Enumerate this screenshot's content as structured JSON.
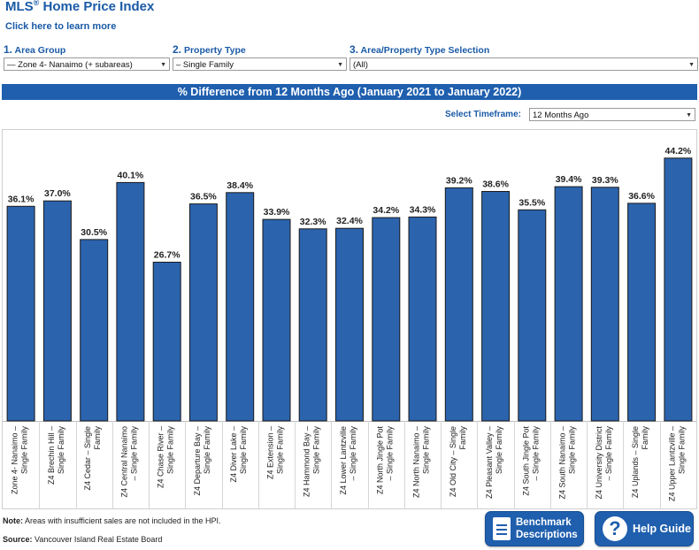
{
  "header": {
    "title": "MLS",
    "title_mark": "®",
    "title_rest": " Home Price Index",
    "learn_link": "Click here to learn more"
  },
  "filters": [
    {
      "num": "1.",
      "label": "Area Group",
      "value": "— Zone 4- Nanaimo (+ subareas)"
    },
    {
      "num": "2.",
      "label": "Property Type",
      "value": "– Single Family"
    },
    {
      "num": "3.",
      "label": "Area/Property Type Selection",
      "value": "(All)"
    }
  ],
  "timeframe": {
    "label": "Select Timeframe:",
    "value": "12 Months Ago"
  },
  "footer": {
    "note_label": "Note:",
    "note_text": " Areas with insufficient sales are not included in the HPI.",
    "source_label": "Source:",
    "source_text": " Vancouver Island Real Estate Board",
    "benchmark_line1": "Benchmark",
    "benchmark_line2": "Descriptions",
    "help": "Help Guide"
  },
  "colors": {
    "bar": "#2b63ad",
    "bar_outline": "#1b1b1b",
    "accent": "#1f5fae"
  },
  "chart_data": {
    "type": "bar",
    "title": "% Difference from 12 Months Ago (January 2021 to January 2022)",
    "xlabel": "",
    "ylabel": "",
    "ylim": [
      0,
      47
    ],
    "grid": false,
    "categories": [
      [
        "Zone 4- Nanaimo –",
        "Single Family"
      ],
      [
        "Z4 Brechin Hill –",
        "Single Family"
      ],
      [
        "Z4 Cedar – Single",
        "Family"
      ],
      [
        "Z4 Central Nanaimo",
        "– Single Family"
      ],
      [
        "Z4 Chase River –",
        "Single Family"
      ],
      [
        "Z4 Departure Bay –",
        "Single Family"
      ],
      [
        "Z4 Diver Lake –",
        "Single Family"
      ],
      [
        "Z4 Extension –",
        "Single Family"
      ],
      [
        "Z4 Hammond Bay –",
        "Single Family"
      ],
      [
        "Z4 Lower Lantzville",
        "– Single Family"
      ],
      [
        "Z4 North Jingle Pot",
        "– Single Family"
      ],
      [
        "Z4 North Nanaimo –",
        "Single Family"
      ],
      [
        "Z4 Old City – Single",
        "Family"
      ],
      [
        "Z4 Pleasant Valley –",
        "Single Family"
      ],
      [
        "Z4 South Jingle Pot",
        "– Single Family"
      ],
      [
        "Z4 South Nanaimo –",
        "Single Family"
      ],
      [
        "Z4 University District",
        "– Single Family"
      ],
      [
        "Z4 Uplands – Single",
        "Family"
      ],
      [
        "Z4 Upper Lantzville –",
        "Single Family"
      ]
    ],
    "values": [
      36.1,
      37.0,
      30.5,
      40.1,
      26.7,
      36.5,
      38.4,
      33.9,
      32.3,
      32.4,
      34.2,
      34.3,
      39.2,
      38.6,
      35.5,
      39.4,
      39.3,
      36.6,
      44.2
    ],
    "data_labels": [
      "36.1%",
      "37.0%",
      "30.5%",
      "40.1%",
      "26.7%",
      "36.5%",
      "38.4%",
      "33.9%",
      "32.3%",
      "32.4%",
      "34.2%",
      "34.3%",
      "39.2%",
      "38.6%",
      "35.5%",
      "39.4%",
      "39.3%",
      "36.6%",
      "44.2%"
    ]
  }
}
